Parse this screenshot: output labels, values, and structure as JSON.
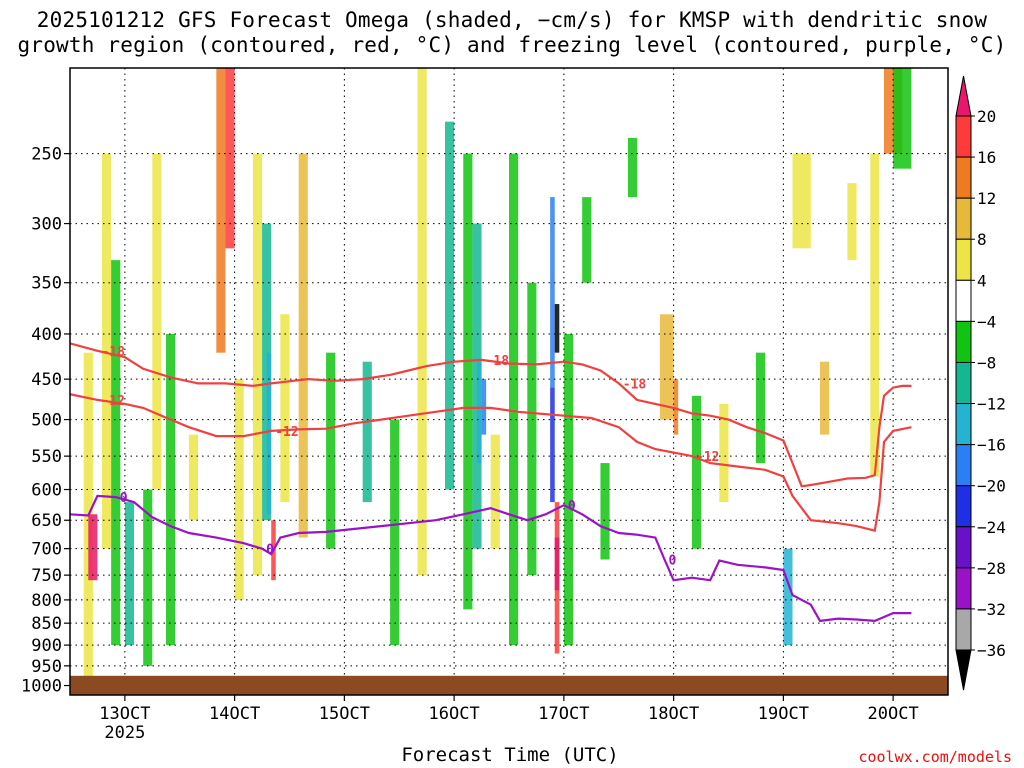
{
  "title_line1": "2025101212 GFS Forecast Omega (shaded, −cm/s) for KMSP with dendritic snow",
  "title_line2": "growth region (contoured, red, °C) and freezing level (contoured, purple, °C)",
  "xlabel": "Forecast Time (UTC)",
  "watermark": "coolwx.com/models",
  "chart_data": {
    "type": "heatmap",
    "title": "2025101212 GFS Forecast Omega (shaded, −cm/s) for KMSP with dendritic snow growth region (contoured, red, °C) and freezing level (contoured, purple, °C)",
    "xlabel": "Forecast Time (UTC)",
    "ylabel": "",
    "x_unit": "forecast hour",
    "xlim": [
      -12,
      180
    ],
    "ylim": [
      1025,
      200
    ],
    "y_scale": "log-pressure (hPa)",
    "x_ticks": [
      {
        "x": 0,
        "label": "13OCT",
        "sub": "2025"
      },
      {
        "x": 24,
        "label": "14OCT"
      },
      {
        "x": 48,
        "label": "15OCT"
      },
      {
        "x": 72,
        "label": "16OCT"
      },
      {
        "x": 96,
        "label": "17OCT"
      },
      {
        "x": 120,
        "label": "18OCT"
      },
      {
        "x": 144,
        "label": "19OCT"
      },
      {
        "x": 168,
        "label": "20OCT"
      }
    ],
    "y_ticks": [
      250,
      300,
      350,
      400,
      450,
      500,
      550,
      600,
      650,
      700,
      750,
      800,
      850,
      900,
      950,
      1000
    ],
    "grid": true,
    "ground": {
      "color": "#8b4a22",
      "top_hpa": 975
    },
    "colorbar": {
      "labels": [
        20,
        16,
        12,
        8,
        4,
        -4,
        -8,
        -12,
        -16,
        -20,
        -24,
        -28,
        -32,
        -36
      ],
      "colors": [
        "#e8176b",
        "#ff3a3a",
        "#f07a1f",
        "#e8b83a",
        "#ece545",
        "#ffffff",
        "#11c411",
        "#14b890",
        "#25b3d3",
        "#2b7ff3",
        "#1e2fe6",
        "#6a10c8",
        "#9a11c8",
        "#a8a8a8",
        "#000000"
      ]
    },
    "dgz_contours": [
      {
        "label": "-18",
        "color": "#f04040",
        "points": [
          [
            -12,
            410
          ],
          [
            -6,
            418
          ],
          [
            0,
            425
          ],
          [
            4,
            438
          ],
          [
            10,
            448
          ],
          [
            16,
            455
          ],
          [
            22,
            455
          ],
          [
            28,
            458
          ],
          [
            32,
            455
          ],
          [
            40,
            450
          ],
          [
            46,
            452
          ],
          [
            52,
            450
          ],
          [
            58,
            445
          ],
          [
            62,
            440
          ],
          [
            66,
            435
          ],
          [
            72,
            430
          ],
          [
            78,
            428
          ],
          [
            84,
            432
          ],
          [
            90,
            433
          ],
          [
            96,
            430
          ],
          [
            100,
            433
          ],
          [
            104,
            440
          ],
          [
            108,
            455
          ],
          [
            112,
            475
          ],
          [
            116,
            480
          ],
          [
            120,
            485
          ],
          [
            124,
            492
          ],
          [
            128,
            495
          ],
          [
            132,
            500
          ],
          [
            136,
            510
          ],
          [
            140,
            518
          ],
          [
            144,
            528
          ],
          [
            146,
            560
          ],
          [
            148,
            595
          ],
          [
            150,
            593
          ],
          [
            154,
            588
          ],
          [
            158,
            583
          ],
          [
            162,
            582
          ],
          [
            164,
            578
          ],
          [
            165,
            510
          ],
          [
            166,
            470
          ],
          [
            168,
            460
          ],
          [
            170,
            458
          ],
          [
            172,
            458
          ]
        ]
      },
      {
        "label": "-12",
        "color": "#f04040",
        "points": [
          [
            -12,
            468
          ],
          [
            -6,
            475
          ],
          [
            0,
            480
          ],
          [
            4,
            485
          ],
          [
            8,
            495
          ],
          [
            14,
            510
          ],
          [
            20,
            522
          ],
          [
            26,
            522
          ],
          [
            32,
            515
          ],
          [
            38,
            513
          ],
          [
            44,
            512
          ],
          [
            50,
            505
          ],
          [
            56,
            500
          ],
          [
            62,
            495
          ],
          [
            68,
            490
          ],
          [
            74,
            485
          ],
          [
            80,
            485
          ],
          [
            86,
            490
          ],
          [
            90,
            492
          ],
          [
            96,
            495
          ],
          [
            102,
            498
          ],
          [
            108,
            510
          ],
          [
            112,
            530
          ],
          [
            116,
            540
          ],
          [
            120,
            545
          ],
          [
            124,
            550
          ],
          [
            128,
            560
          ],
          [
            134,
            565
          ],
          [
            140,
            570
          ],
          [
            144,
            580
          ],
          [
            146,
            610
          ],
          [
            150,
            650
          ],
          [
            156,
            655
          ],
          [
            160,
            660
          ],
          [
            164,
            668
          ],
          [
            165,
            620
          ],
          [
            166,
            530
          ],
          [
            168,
            515
          ],
          [
            172,
            510
          ]
        ]
      }
    ],
    "freezing_contour": {
      "label": "0",
      "color": "#9b12c9",
      "points": [
        [
          -12,
          640
        ],
        [
          -8,
          642
        ],
        [
          -6,
          610
        ],
        [
          -2,
          612
        ],
        [
          2,
          620
        ],
        [
          6,
          645
        ],
        [
          10,
          660
        ],
        [
          14,
          672
        ],
        [
          20,
          680
        ],
        [
          26,
          690
        ],
        [
          30,
          700
        ],
        [
          32,
          710
        ],
        [
          34,
          680
        ],
        [
          38,
          672
        ],
        [
          44,
          670
        ],
        [
          50,
          665
        ],
        [
          56,
          660
        ],
        [
          62,
          655
        ],
        [
          68,
          650
        ],
        [
          74,
          640
        ],
        [
          80,
          630
        ],
        [
          84,
          640
        ],
        [
          88,
          650
        ],
        [
          92,
          640
        ],
        [
          96,
          625
        ],
        [
          100,
          640
        ],
        [
          104,
          660
        ],
        [
          108,
          672
        ],
        [
          112,
          675
        ],
        [
          116,
          680
        ],
        [
          118,
          720
        ],
        [
          120,
          760
        ],
        [
          124,
          755
        ],
        [
          128,
          760
        ],
        [
          130,
          722
        ],
        [
          134,
          730
        ],
        [
          140,
          735
        ],
        [
          144,
          740
        ],
        [
          146,
          790
        ],
        [
          150,
          810
        ],
        [
          152,
          845
        ],
        [
          156,
          840
        ],
        [
          160,
          842
        ],
        [
          164,
          845
        ],
        [
          168,
          828
        ],
        [
          172,
          828
        ]
      ]
    }
  }
}
